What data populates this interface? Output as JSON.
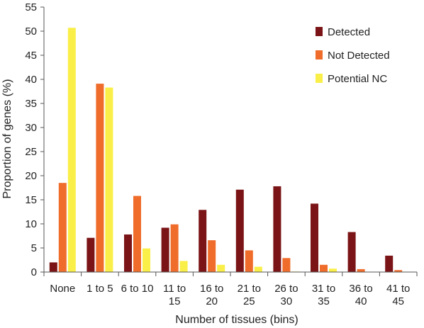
{
  "chart_data": {
    "type": "bar",
    "title": "",
    "xlabel": "Number of tissues (bins)",
    "ylabel": "Proportion of genes (%)",
    "ylim": [
      0,
      55
    ],
    "yticks": [
      0,
      5,
      10,
      15,
      20,
      25,
      30,
      35,
      40,
      45,
      50,
      55
    ],
    "grid": false,
    "legend_position": "top-right",
    "categories": [
      [
        "None"
      ],
      [
        "1 to 5"
      ],
      [
        "6 to 10"
      ],
      [
        "11 to",
        "15"
      ],
      [
        "16 to",
        "20"
      ],
      [
        "21 to",
        "25"
      ],
      [
        "26 to",
        "30"
      ],
      [
        "31 to",
        "35"
      ],
      [
        "36 to",
        "40"
      ],
      [
        "41 to",
        "45"
      ]
    ],
    "series": [
      {
        "name": "Detected",
        "color": "#7b1416",
        "values": [
          2.0,
          7.1,
          7.8,
          9.2,
          12.9,
          17.1,
          17.8,
          14.2,
          8.3,
          3.4
        ]
      },
      {
        "name": "Not Detected",
        "color": "#ef6c2a",
        "values": [
          18.5,
          39.1,
          15.8,
          9.9,
          6.6,
          4.5,
          2.9,
          1.5,
          0.6,
          0.4
        ]
      },
      {
        "name": "Potential NC",
        "color": "#f9ef48",
        "values": [
          50.7,
          38.3,
          4.9,
          2.3,
          1.5,
          1.1,
          0.1,
          0.7,
          0.0,
          0.0
        ]
      }
    ]
  }
}
